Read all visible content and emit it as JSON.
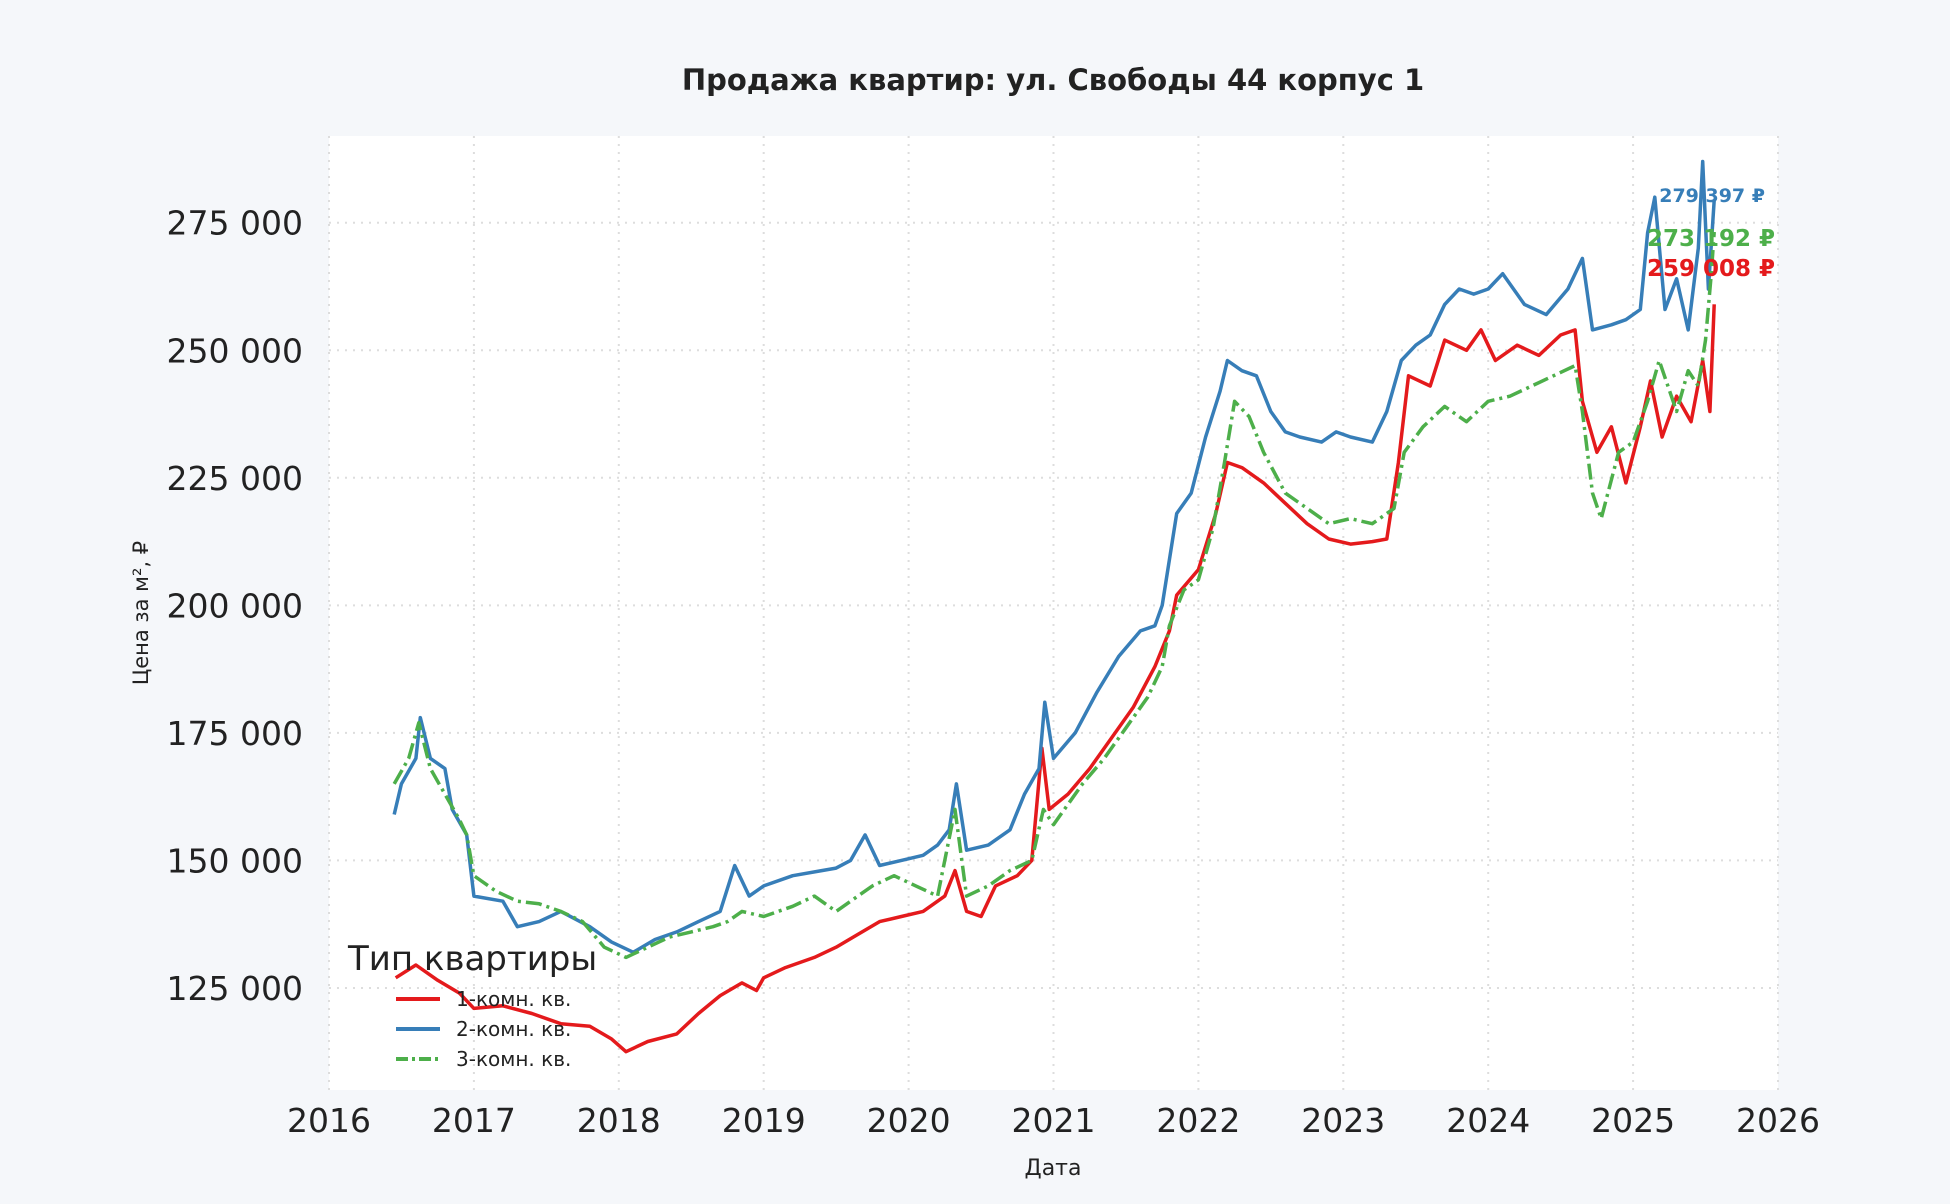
{
  "chart_data": {
    "type": "line",
    "title": "Продажа квартир: ул. Свободы 44 корпус 1",
    "xlabel": "Дата",
    "ylabel": "Цена за м², ₽",
    "xlim": [
      2016.0,
      2026.0
    ],
    "ylim": [
      105000,
      292000
    ],
    "x_ticks": [
      2016,
      2017,
      2018,
      2019,
      2020,
      2021,
      2022,
      2023,
      2024,
      2025,
      2026
    ],
    "x_tick_labels": [
      "2016",
      "2017",
      "2018",
      "2019",
      "2020",
      "2021",
      "2022",
      "2023",
      "2024",
      "2025",
      "2026"
    ],
    "y_ticks": [
      125000,
      150000,
      175000,
      200000,
      225000,
      250000,
      275000
    ],
    "y_tick_labels": [
      "125 000",
      "150 000",
      "175 000",
      "200 000",
      "225 000",
      "250 000",
      "275 000"
    ],
    "grid": true,
    "legend": {
      "title": "Тип квартиры",
      "placement": "bottom-left"
    },
    "colors": {
      "background": "#f5f7fa",
      "plot_area": "#ffffff",
      "grid": "#dddddd",
      "text": "#222222"
    },
    "series": [
      {
        "name": "1-комн. кв.",
        "color": "#e41a1c",
        "style": "solid",
        "end_label": "259 008 ₽",
        "points": [
          [
            2016.46,
            127000
          ],
          [
            2016.6,
            129500
          ],
          [
            2016.75,
            126500
          ],
          [
            2016.9,
            124000
          ],
          [
            2017.0,
            121000
          ],
          [
            2017.2,
            121500
          ],
          [
            2017.4,
            120000
          ],
          [
            2017.6,
            118000
          ],
          [
            2017.8,
            117500
          ],
          [
            2017.95,
            115000
          ],
          [
            2018.05,
            112500
          ],
          [
            2018.2,
            114500
          ],
          [
            2018.4,
            116000
          ],
          [
            2018.55,
            120000
          ],
          [
            2018.7,
            123500
          ],
          [
            2018.85,
            126000
          ],
          [
            2018.95,
            124500
          ],
          [
            2019.0,
            127000
          ],
          [
            2019.15,
            129000
          ],
          [
            2019.35,
            131000
          ],
          [
            2019.5,
            133000
          ],
          [
            2019.65,
            135500
          ],
          [
            2019.8,
            138000
          ],
          [
            2019.95,
            139000
          ],
          [
            2020.1,
            140000
          ],
          [
            2020.25,
            143000
          ],
          [
            2020.32,
            148000
          ],
          [
            2020.4,
            140000
          ],
          [
            2020.5,
            139000
          ],
          [
            2020.6,
            145000
          ],
          [
            2020.75,
            147000
          ],
          [
            2020.85,
            150000
          ],
          [
            2020.92,
            172000
          ],
          [
            2020.97,
            160000
          ],
          [
            2021.1,
            163000
          ],
          [
            2021.25,
            168000
          ],
          [
            2021.4,
            174000
          ],
          [
            2021.55,
            180000
          ],
          [
            2021.7,
            188000
          ],
          [
            2021.8,
            195000
          ],
          [
            2021.85,
            202000
          ],
          [
            2022.0,
            207000
          ],
          [
            2022.12,
            218000
          ],
          [
            2022.2,
            228000
          ],
          [
            2022.3,
            227000
          ],
          [
            2022.45,
            224000
          ],
          [
            2022.6,
            220000
          ],
          [
            2022.75,
            216000
          ],
          [
            2022.9,
            213000
          ],
          [
            2023.05,
            212000
          ],
          [
            2023.2,
            212500
          ],
          [
            2023.3,
            213000
          ],
          [
            2023.38,
            228000
          ],
          [
            2023.45,
            245000
          ],
          [
            2023.6,
            243000
          ],
          [
            2023.7,
            252000
          ],
          [
            2023.85,
            250000
          ],
          [
            2023.95,
            254000
          ],
          [
            2024.05,
            248000
          ],
          [
            2024.2,
            251000
          ],
          [
            2024.35,
            249000
          ],
          [
            2024.5,
            253000
          ],
          [
            2024.6,
            254000
          ],
          [
            2024.65,
            240000
          ],
          [
            2024.75,
            230000
          ],
          [
            2024.85,
            235000
          ],
          [
            2024.95,
            224000
          ],
          [
            2025.05,
            235000
          ],
          [
            2025.12,
            244000
          ],
          [
            2025.2,
            233000
          ],
          [
            2025.3,
            241000
          ],
          [
            2025.4,
            236000
          ],
          [
            2025.48,
            248000
          ],
          [
            2025.53,
            238000
          ],
          [
            2025.56,
            259008
          ]
        ]
      },
      {
        "name": "2-комн. кв.",
        "color": "#377eb8",
        "style": "solid",
        "end_label": "279 397 ₽",
        "points": [
          [
            2016.45,
            159000
          ],
          [
            2016.5,
            165000
          ],
          [
            2016.6,
            170000
          ],
          [
            2016.63,
            178000
          ],
          [
            2016.7,
            170000
          ],
          [
            2016.8,
            168000
          ],
          [
            2016.85,
            160000
          ],
          [
            2016.95,
            155000
          ],
          [
            2017.0,
            143000
          ],
          [
            2017.2,
            142000
          ],
          [
            2017.3,
            137000
          ],
          [
            2017.45,
            138000
          ],
          [
            2017.6,
            140000
          ],
          [
            2017.8,
            137000
          ],
          [
            2017.95,
            134000
          ],
          [
            2018.1,
            132000
          ],
          [
            2018.25,
            134500
          ],
          [
            2018.4,
            136000
          ],
          [
            2018.55,
            138000
          ],
          [
            2018.7,
            140000
          ],
          [
            2018.8,
            149000
          ],
          [
            2018.9,
            143000
          ],
          [
            2019.0,
            145000
          ],
          [
            2019.2,
            147000
          ],
          [
            2019.4,
            148000
          ],
          [
            2019.5,
            148500
          ],
          [
            2019.6,
            150000
          ],
          [
            2019.7,
            155000
          ],
          [
            2019.8,
            149000
          ],
          [
            2019.95,
            150000
          ],
          [
            2020.1,
            151000
          ],
          [
            2020.2,
            153000
          ],
          [
            2020.28,
            156000
          ],
          [
            2020.33,
            165000
          ],
          [
            2020.4,
            152000
          ],
          [
            2020.55,
            153000
          ],
          [
            2020.7,
            156000
          ],
          [
            2020.8,
            163000
          ],
          [
            2020.9,
            168000
          ],
          [
            2020.94,
            181000
          ],
          [
            2021.0,
            170000
          ],
          [
            2021.15,
            175000
          ],
          [
            2021.3,
            183000
          ],
          [
            2021.45,
            190000
          ],
          [
            2021.6,
            195000
          ],
          [
            2021.7,
            196000
          ],
          [
            2021.75,
            200000
          ],
          [
            2021.85,
            218000
          ],
          [
            2021.95,
            222000
          ],
          [
            2022.05,
            233000
          ],
          [
            2022.15,
            242000
          ],
          [
            2022.2,
            248000
          ],
          [
            2022.3,
            246000
          ],
          [
            2022.4,
            245000
          ],
          [
            2022.5,
            238000
          ],
          [
            2022.6,
            234000
          ],
          [
            2022.7,
            233000
          ],
          [
            2022.85,
            232000
          ],
          [
            2022.95,
            234000
          ],
          [
            2023.05,
            233000
          ],
          [
            2023.2,
            232000
          ],
          [
            2023.3,
            238000
          ],
          [
            2023.4,
            248000
          ],
          [
            2023.5,
            251000
          ],
          [
            2023.6,
            253000
          ],
          [
            2023.7,
            259000
          ],
          [
            2023.8,
            262000
          ],
          [
            2023.9,
            261000
          ],
          [
            2024.0,
            262000
          ],
          [
            2024.1,
            265000
          ],
          [
            2024.25,
            259000
          ],
          [
            2024.4,
            257000
          ],
          [
            2024.55,
            262000
          ],
          [
            2024.65,
            268000
          ],
          [
            2024.72,
            254000
          ],
          [
            2024.85,
            255000
          ],
          [
            2024.95,
            256000
          ],
          [
            2025.05,
            258000
          ],
          [
            2025.1,
            273000
          ],
          [
            2025.15,
            280000
          ],
          [
            2025.22,
            258000
          ],
          [
            2025.3,
            264000
          ],
          [
            2025.38,
            254000
          ],
          [
            2025.45,
            270000
          ],
          [
            2025.48,
            287000
          ],
          [
            2025.52,
            262000
          ],
          [
            2025.56,
            279397
          ]
        ]
      },
      {
        "name": "3-комн. кв.",
        "color": "#4daf4a",
        "style": "dashdot",
        "end_label": "273 192 ₽",
        "points": [
          [
            2016.45,
            165000
          ],
          [
            2016.55,
            170000
          ],
          [
            2016.62,
            177000
          ],
          [
            2016.7,
            168000
          ],
          [
            2016.8,
            163000
          ],
          [
            2016.9,
            158000
          ],
          [
            2016.95,
            155000
          ],
          [
            2017.0,
            147000
          ],
          [
            2017.15,
            144000
          ],
          [
            2017.3,
            142000
          ],
          [
            2017.45,
            141500
          ],
          [
            2017.6,
            140000
          ],
          [
            2017.75,
            138000
          ],
          [
            2017.9,
            133000
          ],
          [
            2018.05,
            131000
          ],
          [
            2018.2,
            133000
          ],
          [
            2018.35,
            135000
          ],
          [
            2018.5,
            136000
          ],
          [
            2018.65,
            137000
          ],
          [
            2018.75,
            138000
          ],
          [
            2018.85,
            140000
          ],
          [
            2019.0,
            139000
          ],
          [
            2019.2,
            141000
          ],
          [
            2019.35,
            143000
          ],
          [
            2019.5,
            140000
          ],
          [
            2019.65,
            143000
          ],
          [
            2019.75,
            145000
          ],
          [
            2019.9,
            147000
          ],
          [
            2020.05,
            145000
          ],
          [
            2020.2,
            143000
          ],
          [
            2020.32,
            160000
          ],
          [
            2020.4,
            143000
          ],
          [
            2020.55,
            145000
          ],
          [
            2020.7,
            148000
          ],
          [
            2020.85,
            150000
          ],
          [
            2020.93,
            160000
          ],
          [
            2021.0,
            157000
          ],
          [
            2021.2,
            165000
          ],
          [
            2021.35,
            170000
          ],
          [
            2021.5,
            176000
          ],
          [
            2021.65,
            182000
          ],
          [
            2021.75,
            188000
          ],
          [
            2021.8,
            196000
          ],
          [
            2021.9,
            203000
          ],
          [
            2022.0,
            205000
          ],
          [
            2022.1,
            215000
          ],
          [
            2022.18,
            228000
          ],
          [
            2022.25,
            240000
          ],
          [
            2022.35,
            237000
          ],
          [
            2022.45,
            230000
          ],
          [
            2022.6,
            222000
          ],
          [
            2022.75,
            219000
          ],
          [
            2022.9,
            216000
          ],
          [
            2023.05,
            217000
          ],
          [
            2023.2,
            216000
          ],
          [
            2023.35,
            219000
          ],
          [
            2023.42,
            230000
          ],
          [
            2023.55,
            235000
          ],
          [
            2023.7,
            239000
          ],
          [
            2023.85,
            236000
          ],
          [
            2024.0,
            240000
          ],
          [
            2024.15,
            241000
          ],
          [
            2024.3,
            243000
          ],
          [
            2024.45,
            245000
          ],
          [
            2024.6,
            247000
          ],
          [
            2024.65,
            238000
          ],
          [
            2024.72,
            222000
          ],
          [
            2024.78,
            217000
          ],
          [
            2024.9,
            230000
          ],
          [
            2025.0,
            232000
          ],
          [
            2025.1,
            240000
          ],
          [
            2025.18,
            248000
          ],
          [
            2025.3,
            238000
          ],
          [
            2025.38,
            246000
          ],
          [
            2025.45,
            243000
          ],
          [
            2025.5,
            252000
          ],
          [
            2025.54,
            265000
          ],
          [
            2025.56,
            273192
          ]
        ]
      }
    ]
  }
}
